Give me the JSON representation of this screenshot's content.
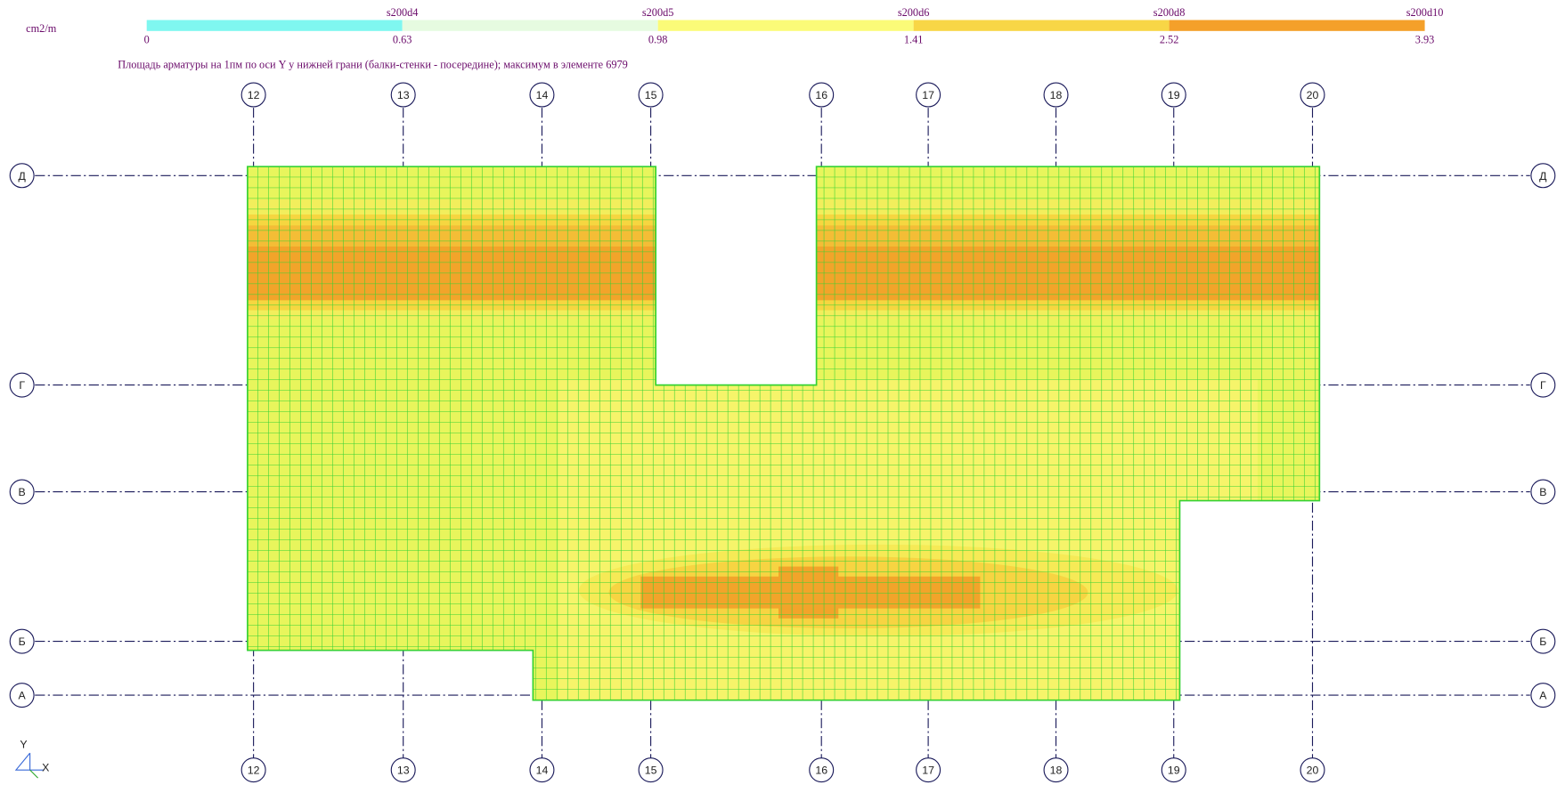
{
  "legend": {
    "unit": "cm2/m",
    "segments": [
      {
        "label": "s200d4",
        "color": "#7ff7f0"
      },
      {
        "label": "s200d5",
        "color": "#e6fbe0"
      },
      {
        "label": "s200d6",
        "color": "#fbfb78"
      },
      {
        "label": "s200d8",
        "color": "#f8d646"
      },
      {
        "label": "s200d10",
        "color": "#f4a02a"
      }
    ],
    "values": [
      "0",
      "0.63",
      "0.98",
      "1.41",
      "2.52",
      "3.93"
    ]
  },
  "caption": "Площадь арматуры на 1пм по оси Y у нижней грани (балки-стенки - посередине); максимум в элементе 6979",
  "grid": {
    "columns": [
      "12",
      "13",
      "14",
      "15",
      "16",
      "17",
      "18",
      "19",
      "20"
    ],
    "rows": [
      "Д",
      "Г",
      "В",
      "Б",
      "А"
    ]
  },
  "axes": {
    "y": "Y",
    "x": "X"
  }
}
